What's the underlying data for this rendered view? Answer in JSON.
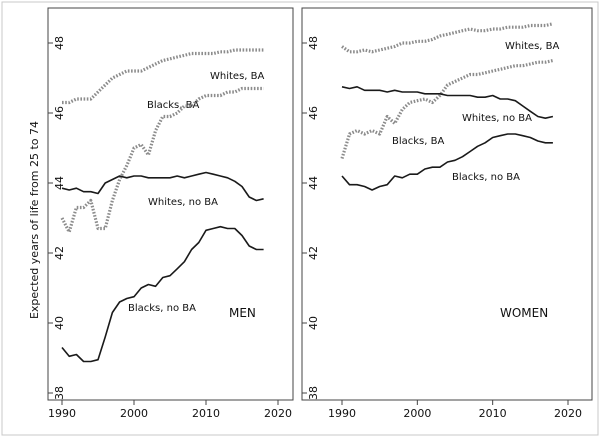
{
  "chart_data": {
    "type": "line",
    "ylabel": "Expected years of life from 25 to 74",
    "x_ticks": [
      1990,
      2000,
      2010,
      2020
    ],
    "y_ticks": [
      38,
      40,
      42,
      44,
      46,
      48
    ],
    "xlim": [
      1989,
      2021
    ],
    "ylim": [
      37.8,
      49.0
    ],
    "panels": [
      {
        "title": "MEN",
        "series": [
          {
            "name": "Whites, BA",
            "style": "dotted",
            "x": [
              1990,
              1991,
              1992,
              1993,
              1994,
              1995,
              1996,
              1997,
              1998,
              1999,
              2000,
              2001,
              2002,
              2003,
              2004,
              2005,
              2006,
              2007,
              2008,
              2009,
              2010,
              2011,
              2012,
              2013,
              2014,
              2015,
              2016,
              2017,
              2018
            ],
            "y": [
              46.3,
              46.3,
              46.4,
              46.4,
              46.4,
              46.6,
              46.8,
              47.0,
              47.1,
              47.2,
              47.2,
              47.2,
              47.3,
              47.4,
              47.5,
              47.55,
              47.6,
              47.65,
              47.7,
              47.7,
              47.7,
              47.7,
              47.75,
              47.75,
              47.8,
              47.8,
              47.8,
              47.8,
              47.8
            ]
          },
          {
            "name": "Blacks, BA",
            "style": "dotted",
            "x": [
              1990,
              1991,
              1992,
              1993,
              1994,
              1995,
              1996,
              1997,
              1998,
              1999,
              2000,
              2001,
              2002,
              2003,
              2004,
              2005,
              2006,
              2007,
              2008,
              2009,
              2010,
              2011,
              2012,
              2013,
              2014,
              2015,
              2016,
              2017,
              2018
            ],
            "y": [
              43.0,
              42.6,
              43.3,
              43.3,
              43.5,
              42.7,
              42.7,
              43.5,
              44.1,
              44.5,
              45.0,
              45.1,
              44.8,
              45.5,
              45.9,
              45.9,
              46.0,
              46.2,
              46.2,
              46.4,
              46.5,
              46.5,
              46.5,
              46.6,
              46.6,
              46.7,
              46.7,
              46.7,
              46.7
            ]
          },
          {
            "name": "Whites, no BA",
            "style": "solid",
            "x": [
              1990,
              1991,
              1992,
              1993,
              1994,
              1995,
              1996,
              1997,
              1998,
              1999,
              2000,
              2001,
              2002,
              2003,
              2004,
              2005,
              2006,
              2007,
              2008,
              2009,
              2010,
              2011,
              2012,
              2013,
              2014,
              2015,
              2016,
              2017,
              2018
            ],
            "y": [
              43.85,
              43.8,
              43.85,
              43.75,
              43.75,
              43.7,
              44.0,
              44.1,
              44.2,
              44.15,
              44.2,
              44.2,
              44.15,
              44.15,
              44.15,
              44.15,
              44.2,
              44.15,
              44.2,
              44.25,
              44.3,
              44.25,
              44.2,
              44.15,
              44.05,
              43.9,
              43.6,
              43.5,
              43.55
            ]
          },
          {
            "name": "Blacks, no BA",
            "style": "solid",
            "x": [
              1990,
              1991,
              1992,
              1993,
              1994,
              1995,
              1996,
              1997,
              1998,
              1999,
              2000,
              2001,
              2002,
              2003,
              2004,
              2005,
              2006,
              2007,
              2008,
              2009,
              2010,
              2011,
              2012,
              2013,
              2014,
              2015,
              2016,
              2017,
              2018
            ],
            "y": [
              39.3,
              39.05,
              39.1,
              38.9,
              38.9,
              38.95,
              39.6,
              40.3,
              40.6,
              40.7,
              40.75,
              41.0,
              41.1,
              41.05,
              41.3,
              41.35,
              41.55,
              41.75,
              42.1,
              42.3,
              42.65,
              42.7,
              42.75,
              42.7,
              42.7,
              42.5,
              42.2,
              42.1,
              42.1
            ]
          }
        ],
        "annotations": [
          "Whites, BA",
          "Blacks, BA",
          "Whites, no BA",
          "Blacks, no BA"
        ]
      },
      {
        "title": "WOMEN",
        "series": [
          {
            "name": "Whites, BA",
            "style": "dotted",
            "x": [
              1990,
              1991,
              1992,
              1993,
              1994,
              1995,
              1996,
              1997,
              1998,
              1999,
              2000,
              2001,
              2002,
              2003,
              2004,
              2005,
              2006,
              2007,
              2008,
              2009,
              2010,
              2011,
              2012,
              2013,
              2014,
              2015,
              2016,
              2017,
              2018
            ],
            "y": [
              47.9,
              47.75,
              47.75,
              47.8,
              47.75,
              47.8,
              47.85,
              47.9,
              48.0,
              48.0,
              48.05,
              48.05,
              48.1,
              48.2,
              48.25,
              48.3,
              48.35,
              48.4,
              48.35,
              48.35,
              48.4,
              48.4,
              48.45,
              48.45,
              48.45,
              48.5,
              48.5,
              48.5,
              48.55
            ]
          },
          {
            "name": "Blacks, BA",
            "style": "dotted",
            "x": [
              1990,
              1991,
              1992,
              1993,
              1994,
              1995,
              1996,
              1997,
              1998,
              1999,
              2000,
              2001,
              2002,
              2003,
              2004,
              2005,
              2006,
              2007,
              2008,
              2009,
              2010,
              2011,
              2012,
              2013,
              2014,
              2015,
              2016,
              2017,
              2018
            ],
            "y": [
              44.7,
              45.4,
              45.5,
              45.4,
              45.5,
              45.4,
              45.9,
              45.7,
              46.1,
              46.3,
              46.35,
              46.4,
              46.3,
              46.5,
              46.8,
              46.9,
              47.0,
              47.1,
              47.1,
              47.15,
              47.2,
              47.25,
              47.3,
              47.35,
              47.35,
              47.4,
              47.45,
              47.45,
              47.5
            ]
          },
          {
            "name": "Whites, no BA",
            "style": "solid",
            "x": [
              1990,
              1991,
              1992,
              1993,
              1994,
              1995,
              1996,
              1997,
              1998,
              1999,
              2000,
              2001,
              2002,
              2003,
              2004,
              2005,
              2006,
              2007,
              2008,
              2009,
              2010,
              2011,
              2012,
              2013,
              2014,
              2015,
              2016,
              2017,
              2018
            ],
            "y": [
              46.75,
              46.7,
              46.75,
              46.65,
              46.65,
              46.65,
              46.6,
              46.65,
              46.6,
              46.6,
              46.6,
              46.55,
              46.55,
              46.55,
              46.5,
              46.5,
              46.5,
              46.5,
              46.45,
              46.45,
              46.5,
              46.4,
              46.4,
              46.35,
              46.2,
              46.05,
              45.9,
              45.85,
              45.9
            ]
          },
          {
            "name": "Blacks, no BA",
            "style": "solid",
            "x": [
              1990,
              1991,
              1992,
              1993,
              1994,
              1995,
              1996,
              1997,
              1998,
              1999,
              2000,
              2001,
              2002,
              2003,
              2004,
              2005,
              2006,
              2007,
              2008,
              2009,
              2010,
              2011,
              2012,
              2013,
              2014,
              2015,
              2016,
              2017,
              2018
            ],
            "y": [
              44.2,
              43.95,
              43.95,
              43.9,
              43.8,
              43.9,
              43.95,
              44.2,
              44.15,
              44.25,
              44.25,
              44.4,
              44.45,
              44.45,
              44.6,
              44.65,
              44.75,
              44.9,
              45.05,
              45.15,
              45.3,
              45.35,
              45.4,
              45.4,
              45.35,
              45.3,
              45.2,
              45.15,
              45.15
            ]
          }
        ],
        "annotations": [
          "Whites, BA",
          "Blacks, BA",
          "Whites, no BA",
          "Blacks, no BA"
        ]
      }
    ],
    "grid": false,
    "legend": "none (inline labels)",
    "colors": {
      "line": "#1a1a1a",
      "dotted": "#8c8c8c",
      "frame": "#444444"
    }
  }
}
